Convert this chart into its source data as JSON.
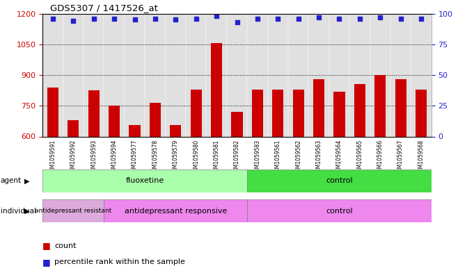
{
  "title": "GDS5307 / 1417526_at",
  "samples": [
    "GSM1059591",
    "GSM1059592",
    "GSM1059593",
    "GSM1059594",
    "GSM1059577",
    "GSM1059578",
    "GSM1059579",
    "GSM1059580",
    "GSM1059581",
    "GSM1059582",
    "GSM1059583",
    "GSM1059561",
    "GSM1059562",
    "GSM1059563",
    "GSM1059564",
    "GSM1059565",
    "GSM1059566",
    "GSM1059567",
    "GSM1059568"
  ],
  "counts": [
    840,
    680,
    825,
    750,
    655,
    765,
    655,
    830,
    1058,
    720,
    830,
    830,
    830,
    880,
    820,
    855,
    900,
    880,
    830
  ],
  "percentiles": [
    96,
    94,
    96,
    96,
    95,
    96,
    95,
    96,
    98,
    93,
    96,
    96,
    96,
    97,
    96,
    96,
    97,
    96,
    96
  ],
  "ylim_left": [
    600,
    1200
  ],
  "ylim_right": [
    0,
    100
  ],
  "yticks_left": [
    600,
    750,
    900,
    1050,
    1200
  ],
  "yticks_right": [
    0,
    25,
    50,
    75,
    100
  ],
  "bar_color": "#cc0000",
  "dot_color": "#2222cc",
  "agent_groups": [
    {
      "label": "fluoxetine",
      "start": 0,
      "end": 10,
      "color": "#aaffaa"
    },
    {
      "label": "control",
      "start": 10,
      "end": 19,
      "color": "#44dd44"
    }
  ],
  "individual_groups": [
    {
      "label": "antidepressant resistant",
      "start": 0,
      "end": 3,
      "color": "#ddaadd"
    },
    {
      "label": "antidepressant responsive",
      "start": 3,
      "end": 10,
      "color": "#ee88ee"
    },
    {
      "label": "control",
      "start": 10,
      "end": 19,
      "color": "#ee88ee"
    }
  ],
  "background_color": "#ffffff",
  "plot_bg_color": "#ffffff",
  "tick_label_color_left": "#cc0000",
  "tick_label_color_right": "#2222cc",
  "grid_color": "#000000",
  "bar_width": 0.55,
  "cell_bg_color": "#e0e0e0"
}
